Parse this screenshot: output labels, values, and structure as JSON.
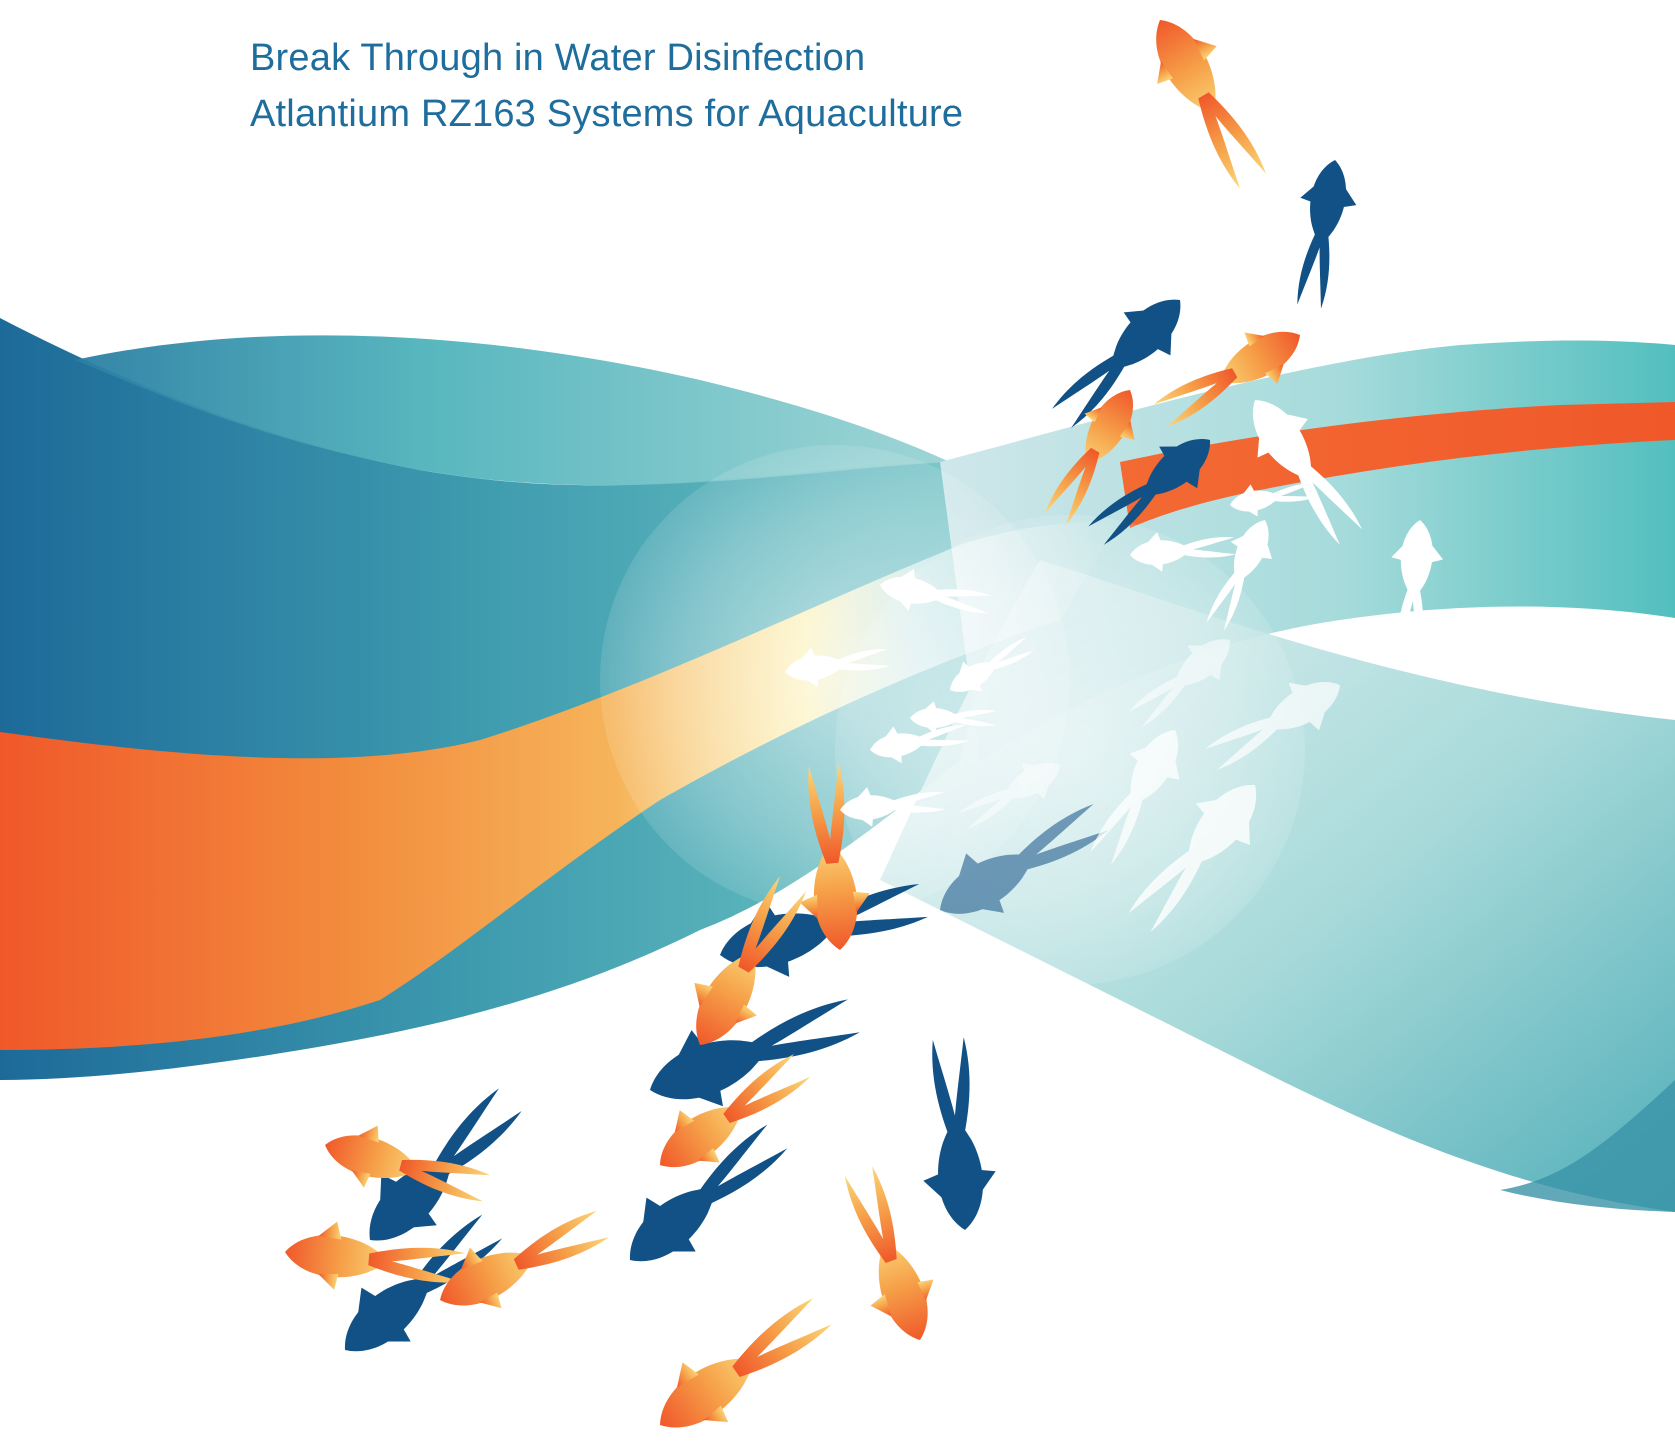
{
  "cover": {
    "headline": "Break Through in Water Disinfection",
    "subheadline": "Atlantium RZ163 Systems for Aquaculture"
  },
  "palette": {
    "title_text": "#1f6d9c",
    "deep_blue": "#1d6a99",
    "teal": "#4db6bc",
    "light_teal": "#8fd0d2",
    "orange": "#f0582a",
    "amber": "#f5a94a",
    "yellow_glow": "#fbf0b0",
    "fish_blue": "#125186",
    "fish_white": "#ffffff"
  },
  "icons": {
    "fish": "fish-icon",
    "light_lens": "light-lens-icon"
  }
}
